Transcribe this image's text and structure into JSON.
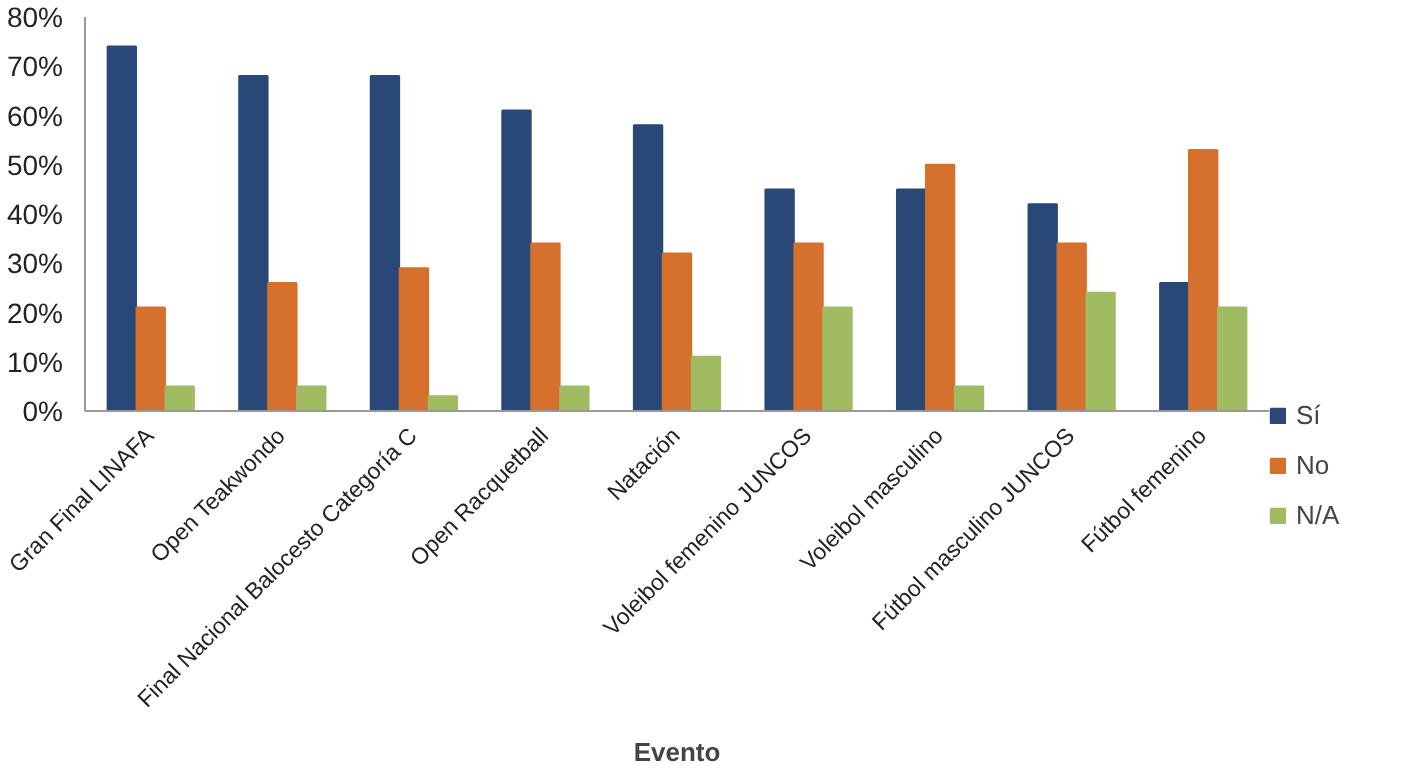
{
  "chart_data": {
    "type": "bar",
    "xlabel": "Evento",
    "categories": [
      "Gran Final LINAFA",
      "Open Teakwondo",
      "Final Nacional Balocesto Categoría C",
      "Open Racquetball",
      "Natación",
      "Voleibol femenino JUNCOS",
      "Voleibol masculino",
      "Fútbol masculino JUNCOS",
      "Fútbol femenino"
    ],
    "series": [
      {
        "name": "Sí",
        "color": "#2a4877",
        "values": [
          74,
          68,
          68,
          61,
          58,
          45,
          45,
          42,
          26
        ]
      },
      {
        "name": "No",
        "color": "#d5702d",
        "values": [
          21,
          26,
          29,
          34,
          32,
          34,
          50,
          34,
          53
        ]
      },
      {
        "name": "N/A",
        "color": "#a1bb62",
        "values": [
          5,
          5,
          3,
          5,
          11,
          21,
          5,
          24,
          21
        ]
      }
    ],
    "ylim": [
      0,
      80
    ],
    "yticks": [
      {
        "value": 0,
        "label": "0%"
      },
      {
        "value": 10,
        "label": "10%"
      },
      {
        "value": 20,
        "label": "20%"
      },
      {
        "value": 30,
        "label": "30%"
      },
      {
        "value": 40,
        "label": "40%"
      },
      {
        "value": 50,
        "label": "50%"
      },
      {
        "value": 60,
        "label": "60%"
      },
      {
        "value": 70,
        "label": "70%"
      },
      {
        "value": 80,
        "label": "80%"
      }
    ],
    "grid": false,
    "legend": "right"
  }
}
